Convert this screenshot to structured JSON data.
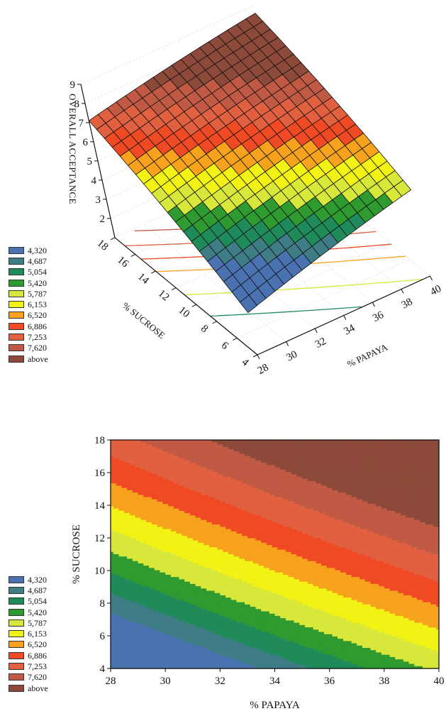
{
  "chart_data": [
    {
      "type": "surface3d",
      "zlabel": "OVERALL ACCEPTANCE",
      "xlabel": "% PAPAYA",
      "ylabel": "% SUCROSE",
      "xlim": [
        28,
        40
      ],
      "ylim": [
        4,
        18
      ],
      "zlim": [
        1,
        9
      ],
      "x_ticks": [
        28,
        30,
        32,
        34,
        36,
        38,
        40
      ],
      "y_ticks": [
        4,
        6,
        8,
        10,
        12,
        14,
        16,
        18
      ],
      "z_ticks": [
        2,
        3,
        4,
        5,
        6,
        7,
        8,
        9
      ],
      "corner_values": {
        "papaya28_sucrose18": 7.1,
        "papaya40_sucrose18": 8.6,
        "papaya28_sucrose4": 3.2,
        "papaya40_sucrose4": 5.5
      },
      "legend_labels": [
        "4,320",
        "4,687",
        "5,054",
        "5,420",
        "5,787",
        "6,153",
        "6,520",
        "6,886",
        "7,253",
        "7,620",
        "above"
      ]
    },
    {
      "type": "contour",
      "xlabel": "% PAPAYA",
      "ylabel": "% SUCROSE",
      "xlim": [
        28,
        40
      ],
      "ylim": [
        4,
        18
      ],
      "x_ticks": [
        28,
        30,
        32,
        34,
        36,
        38,
        40
      ],
      "y_ticks": [
        4,
        6,
        8,
        10,
        12,
        14,
        16,
        18
      ],
      "levels": [
        4.32,
        4.687,
        5.054,
        5.42,
        5.787,
        6.153,
        6.52,
        6.886,
        7.253,
        7.62
      ],
      "legend_labels": [
        "4,320",
        "4,687",
        "5,054",
        "5,420",
        "5,787",
        "6,153",
        "6,520",
        "6,886",
        "7,253",
        "7,620",
        "above"
      ]
    }
  ],
  "legend_colors": [
    "#4a72b0",
    "#3f7d86",
    "#1f8a5a",
    "#2f9a30",
    "#d8e83a",
    "#f2f214",
    "#f6a21c",
    "#ef4a24",
    "#e06040",
    "#c05a44",
    "#8d4a3a"
  ]
}
